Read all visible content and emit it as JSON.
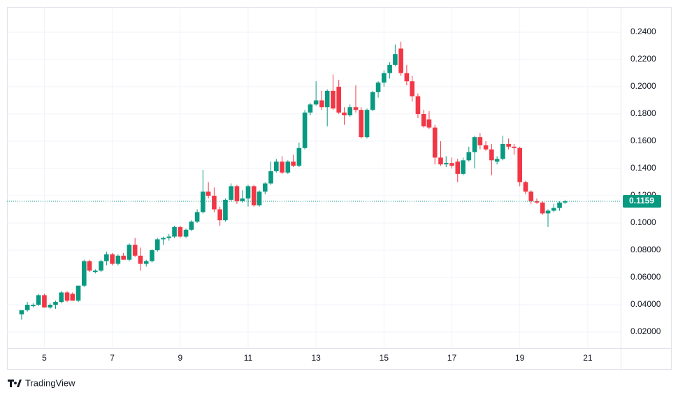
{
  "chart_data": {
    "type": "candlestick",
    "branding": "TradingView",
    "x": [
      4.33,
      4.5,
      4.67,
      4.83,
      5,
      5.17,
      5.33,
      5.5,
      5.67,
      5.83,
      6,
      6.17,
      6.33,
      6.5,
      6.67,
      6.83,
      7,
      7.17,
      7.33,
      7.5,
      7.67,
      7.83,
      8,
      8.17,
      8.33,
      8.5,
      8.67,
      8.83,
      9,
      9.17,
      9.33,
      9.5,
      9.67,
      9.83,
      10,
      10.17,
      10.33,
      10.5,
      10.67,
      10.83,
      11,
      11.17,
      11.33,
      11.5,
      11.67,
      11.83,
      12,
      12.17,
      12.33,
      12.5,
      12.67,
      12.83,
      13,
      13.17,
      13.33,
      13.5,
      13.67,
      13.83,
      14,
      14.17,
      14.33,
      14.5,
      14.67,
      14.83,
      15,
      15.17,
      15.33,
      15.5,
      15.67,
      15.83,
      16,
      16.17,
      16.33,
      16.5,
      16.67,
      16.83,
      17,
      17.17,
      17.33,
      17.5,
      17.67,
      17.83,
      18,
      18.17,
      18.33,
      18.5,
      18.67,
      18.83,
      19,
      19.17,
      19.33,
      19.5,
      19.67,
      19.83,
      20,
      20.17,
      20.33
    ],
    "open": [
      0.033,
      0.036,
      0.039,
      0.04,
      0.047,
      0.038,
      0.04,
      0.042,
      0.049,
      0.048,
      0.043,
      0.054,
      0.072,
      0.064,
      0.065,
      0.072,
      0.077,
      0.07,
      0.076,
      0.073,
      0.084,
      0.076,
      0.07,
      0.072,
      0.08,
      0.088,
      0.089,
      0.09,
      0.097,
      0.09,
      0.095,
      0.101,
      0.108,
      0.123,
      0.12,
      0.11,
      0.102,
      0.117,
      0.127,
      0.116,
      0.118,
      0.127,
      0.113,
      0.123,
      0.129,
      0.138,
      0.145,
      0.137,
      0.145,
      0.142,
      0.155,
      0.181,
      0.187,
      0.19,
      0.185,
      0.197,
      0.2,
      0.181,
      0.179,
      0.185,
      0.183,
      0.163,
      0.183,
      0.196,
      0.203,
      0.21,
      0.216,
      0.228,
      0.21,
      0.204,
      0.193,
      0.18,
      0.176,
      0.17,
      0.148,
      0.143,
      0.144,
      0.145,
      0.136,
      0.146,
      0.152,
      0.163,
      0.157,
      0.154,
      0.145,
      0.147,
      0.158,
      0.156,
      0.155,
      0.13,
      0.123,
      0.116,
      0.115,
      0.107,
      0.109,
      0.111,
      0.115
    ],
    "high": [
      0.036,
      0.042,
      0.041,
      0.048,
      0.048,
      0.041,
      0.043,
      0.05,
      0.05,
      0.049,
      0.054,
      0.073,
      0.073,
      0.066,
      0.073,
      0.079,
      0.078,
      0.077,
      0.078,
      0.085,
      0.089,
      0.082,
      0.073,
      0.081,
      0.089,
      0.09,
      0.092,
      0.098,
      0.098,
      0.096,
      0.102,
      0.11,
      0.139,
      0.13,
      0.126,
      0.112,
      0.118,
      0.129,
      0.128,
      0.124,
      0.128,
      0.128,
      0.124,
      0.13,
      0.145,
      0.147,
      0.149,
      0.146,
      0.15,
      0.159,
      0.183,
      0.188,
      0.204,
      0.197,
      0.198,
      0.209,
      0.205,
      0.185,
      0.187,
      0.201,
      0.185,
      0.184,
      0.197,
      0.204,
      0.212,
      0.218,
      0.231,
      0.233,
      0.216,
      0.208,
      0.195,
      0.183,
      0.182,
      0.172,
      0.16,
      0.149,
      0.148,
      0.147,
      0.148,
      0.156,
      0.164,
      0.166,
      0.16,
      0.158,
      0.149,
      0.164,
      0.162,
      0.158,
      0.156,
      0.131,
      0.124,
      0.118,
      0.116,
      0.11,
      0.114,
      0.116,
      0.117
    ],
    "low": [
      0.029,
      0.035,
      0.038,
      0.039,
      0.038,
      0.037,
      0.037,
      0.041,
      0.042,
      0.043,
      0.042,
      0.053,
      0.064,
      0.063,
      0.064,
      0.069,
      0.069,
      0.069,
      0.073,
      0.072,
      0.075,
      0.065,
      0.068,
      0.071,
      0.079,
      0.084,
      0.087,
      0.089,
      0.089,
      0.089,
      0.094,
      0.1,
      0.107,
      0.118,
      0.108,
      0.098,
      0.101,
      0.116,
      0.114,
      0.115,
      0.112,
      0.112,
      0.112,
      0.121,
      0.128,
      0.137,
      0.136,
      0.136,
      0.141,
      0.141,
      0.154,
      0.179,
      0.186,
      0.183,
      0.171,
      0.183,
      0.18,
      0.172,
      0.178,
      0.181,
      0.162,
      0.162,
      0.182,
      0.192,
      0.2,
      0.206,
      0.215,
      0.208,
      0.201,
      0.189,
      0.177,
      0.17,
      0.169,
      0.143,
      0.142,
      0.141,
      0.14,
      0.13,
      0.135,
      0.145,
      0.14,
      0.154,
      0.153,
      0.135,
      0.143,
      0.146,
      0.154,
      0.15,
      0.127,
      0.121,
      0.114,
      0.114,
      0.106,
      0.097,
      0.108,
      0.109,
      0.114
    ],
    "close": [
      0.036,
      0.04,
      0.04,
      0.047,
      0.038,
      0.04,
      0.042,
      0.049,
      0.043,
      0.043,
      0.054,
      0.072,
      0.065,
      0.065,
      0.072,
      0.077,
      0.07,
      0.076,
      0.073,
      0.084,
      0.076,
      0.07,
      0.072,
      0.08,
      0.088,
      0.089,
      0.09,
      0.097,
      0.09,
      0.095,
      0.101,
      0.108,
      0.123,
      0.12,
      0.11,
      0.102,
      0.117,
      0.127,
      0.116,
      0.118,
      0.127,
      0.113,
      0.123,
      0.129,
      0.138,
      0.145,
      0.137,
      0.145,
      0.142,
      0.155,
      0.181,
      0.187,
      0.19,
      0.185,
      0.197,
      0.184,
      0.181,
      0.179,
      0.185,
      0.183,
      0.163,
      0.183,
      0.196,
      0.203,
      0.21,
      0.216,
      0.224,
      0.21,
      0.204,
      0.193,
      0.18,
      0.171,
      0.17,
      0.148,
      0.143,
      0.144,
      0.142,
      0.136,
      0.146,
      0.152,
      0.163,
      0.157,
      0.154,
      0.146,
      0.147,
      0.158,
      0.156,
      0.155,
      0.13,
      0.123,
      0.116,
      0.115,
      0.107,
      0.109,
      0.111,
      0.115,
      0.1159
    ],
    "up_color": "#089981",
    "down_color": "#f23645",
    "xlim": [
      3.9,
      21.97
    ],
    "xticks": [
      5,
      7,
      9,
      11,
      13,
      15,
      17,
      19,
      21
    ],
    "ylim": [
      0.0082,
      0.2585
    ],
    "yticks": [
      {
        "value": 0.02,
        "label": "0.02000"
      },
      {
        "value": 0.04,
        "label": "0.04000"
      },
      {
        "value": 0.06,
        "label": "0.06000"
      },
      {
        "value": 0.08,
        "label": "0.08000"
      },
      {
        "value": 0.1,
        "label": "0.1000"
      },
      {
        "value": 0.12,
        "label": "0.1200"
      },
      {
        "value": 0.14,
        "label": "0.1400"
      },
      {
        "value": 0.16,
        "label": "0.1600"
      },
      {
        "value": 0.18,
        "label": "0.1800"
      },
      {
        "value": 0.2,
        "label": "0.2000"
      },
      {
        "value": 0.22,
        "label": "0.2200"
      },
      {
        "value": 0.24,
        "label": "0.2400"
      }
    ],
    "grid": true
  }
}
